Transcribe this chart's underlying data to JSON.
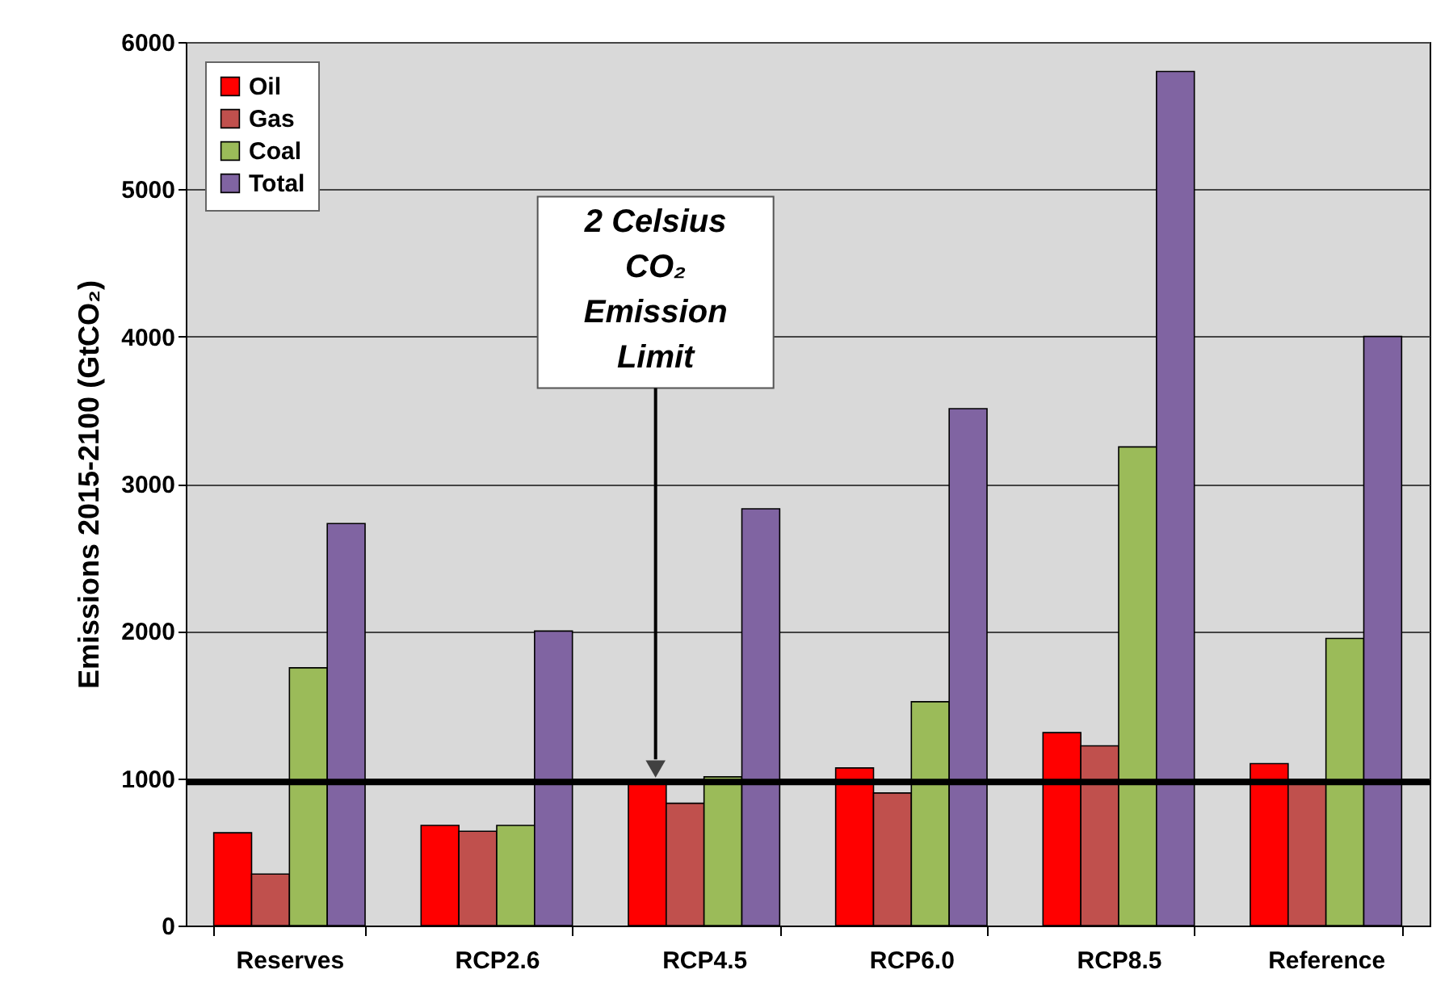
{
  "chart_data": {
    "type": "bar",
    "ylabel": "Emissions 2015-2100 (GtCO₂)",
    "categories": [
      "Reserves",
      "RCP2.6",
      "RCP4.5",
      "RCP6.0",
      "RCP8.5",
      "Reference"
    ],
    "series": [
      {
        "name": "Oil",
        "color": "#ff0000",
        "values": [
          630,
          680,
          960,
          1070,
          1310,
          1100
        ]
      },
      {
        "name": "Gas",
        "color": "#c0504d",
        "values": [
          350,
          640,
          830,
          900,
          1220,
          960
        ]
      },
      {
        "name": "Coal",
        "color": "#9bbb59",
        "values": [
          1750,
          680,
          1010,
          1520,
          3250,
          1950
        ]
      },
      {
        "name": "Total",
        "color": "#8064a2",
        "values": [
          2730,
          2000,
          2830,
          3510,
          5800,
          4000
        ]
      }
    ],
    "ylim": [
      0,
      6000
    ],
    "yticks": [
      0,
      1000,
      2000,
      3000,
      4000,
      5000,
      6000
    ],
    "grid": "y",
    "legend": "top left",
    "ref_lines": [
      {
        "axis": "y",
        "value": 975,
        "color": "#000000"
      }
    ],
    "annotations": [
      "2 Celsius\nCO₂\nEmission\nLimit"
    ]
  }
}
